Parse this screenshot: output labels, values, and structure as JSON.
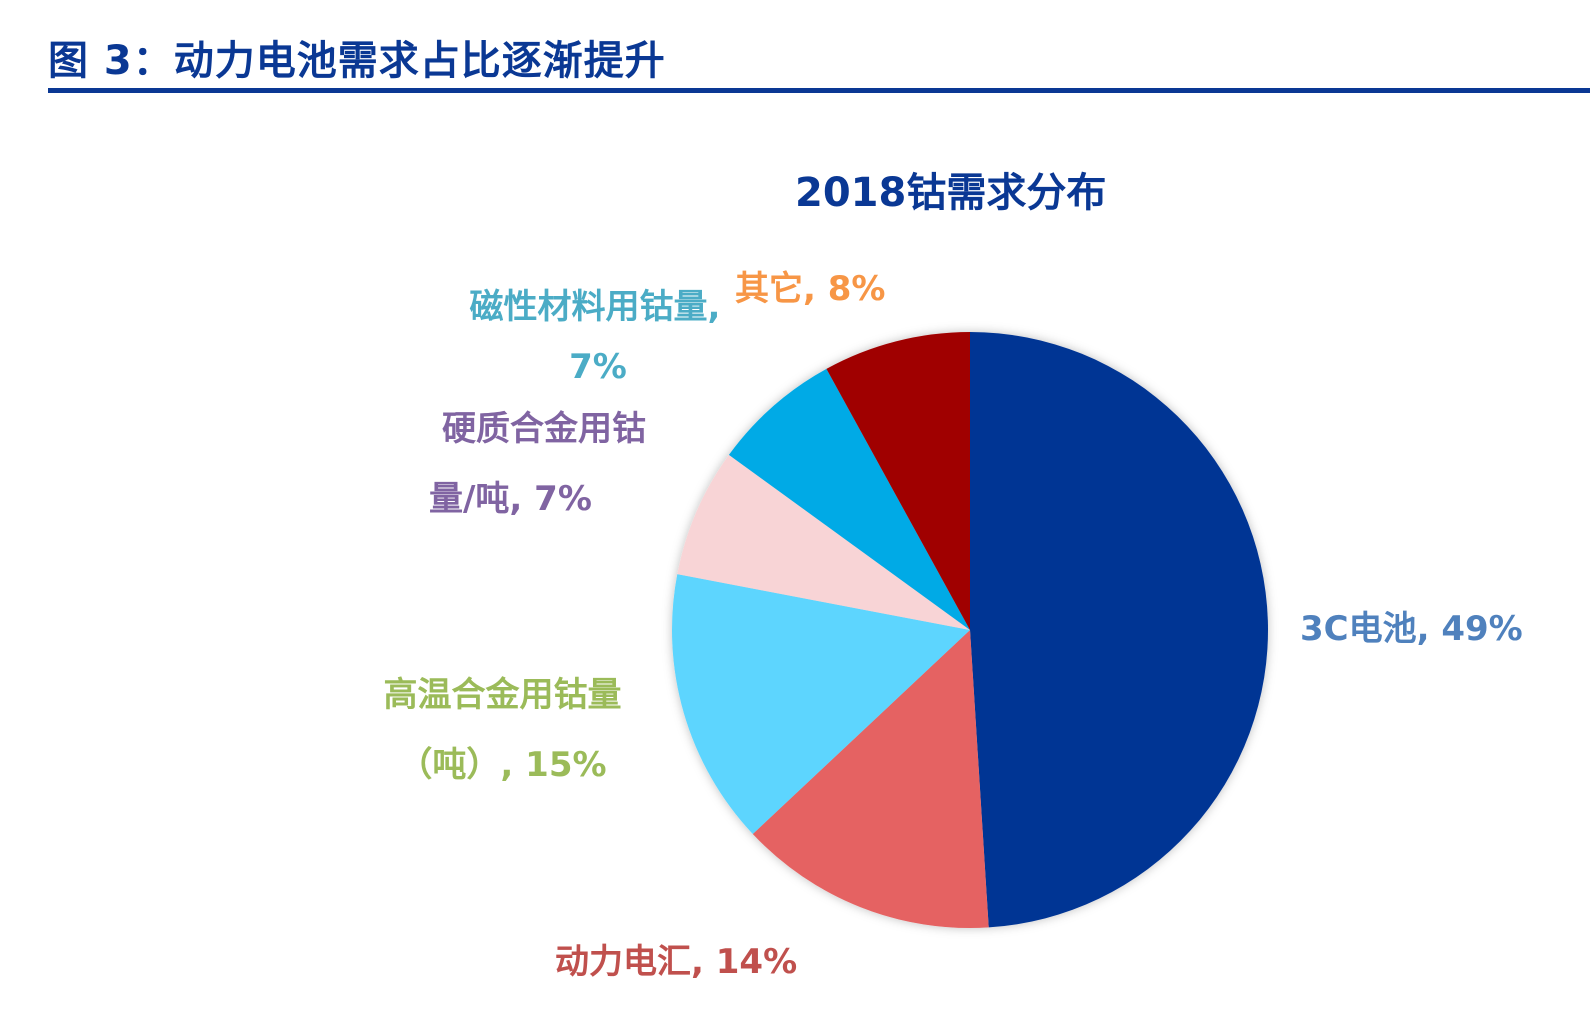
{
  "figure": {
    "title": "图 3：动力电池需求占比逐渐提升"
  },
  "chart_data": {
    "type": "pie",
    "title": "2018钴需求分布",
    "start_angle_deg": 0,
    "direction": "clockwise",
    "slices": [
      {
        "name": "3C电池",
        "value": 49,
        "color": "#003594",
        "label_color": "#4f81bd",
        "label_lines": [
          "3C电池, 49%"
        ]
      },
      {
        "name": "动力电汇",
        "value": 14,
        "color": "#e56262",
        "label_color": "#c0504d",
        "label_lines": [
          "动力电汇, 14%"
        ]
      },
      {
        "name": "高温合金用钴量（吨）",
        "value": 15,
        "color": "#5dd5fe",
        "label_color": "#9bbb59",
        "label_lines": [
          "高温合金用钴量",
          "（吨）, 15%"
        ]
      },
      {
        "name": "硬质合金用钴量/吨",
        "value": 7,
        "color": "#f8d4d6",
        "label_color": "#8064a2",
        "label_lines": [
          "硬质合金用钴",
          "量/吨, 7%"
        ]
      },
      {
        "name": "磁性材料用钴量",
        "value": 7,
        "color": "#00aae6",
        "label_color": "#4bacc6",
        "label_lines": [
          "磁性材料用钴量,",
          "7%"
        ]
      },
      {
        "name": "其它",
        "value": 8,
        "color": "#a00000",
        "label_color": "#f79646",
        "label_lines": [
          "其它, 8%"
        ]
      }
    ],
    "legend": "none"
  }
}
